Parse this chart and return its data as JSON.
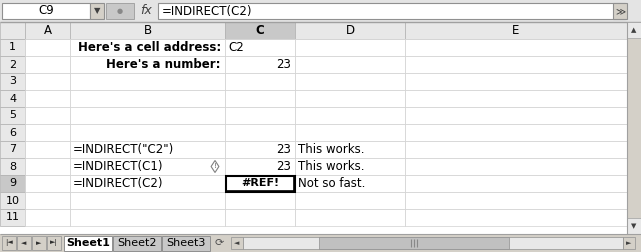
{
  "formula_bar_cell": "C9",
  "formula_bar_formula": "=INDIRECT(C2)",
  "col_headers": [
    "",
    "A",
    "B",
    "C",
    "D",
    "E"
  ],
  "row_labels": [
    "1",
    "2",
    "3",
    "4",
    "5",
    "6",
    "7",
    "8",
    "9",
    "10",
    "11"
  ],
  "cells": {
    "B1": "Here's a cell address:",
    "C1": "C2",
    "B2": "Here's a number:",
    "C2": "23",
    "B7": "=INDIRECT(\"C2\")",
    "C7": "23",
    "D7": "This works.",
    "B8": "=INDIRECT(C1)",
    "C8": "23",
    "D8": "This works.",
    "B9": "=INDIRECT(C2)",
    "C9": "#REF!",
    "D9": "Not so fast."
  },
  "selected_cell": "C9",
  "tabs": [
    "Sheet1",
    "Sheet2",
    "Sheet3"
  ],
  "active_tab": "Sheet1",
  "bg_color": "#f0f0f0",
  "header_bg": "#e8e8e8",
  "grid_color": "#d0d0d0",
  "cell_bg": "#ffffff",
  "selected_col_header_bg": "#c8c8c8",
  "selected_row_header_bg": "#c8c8c8"
}
